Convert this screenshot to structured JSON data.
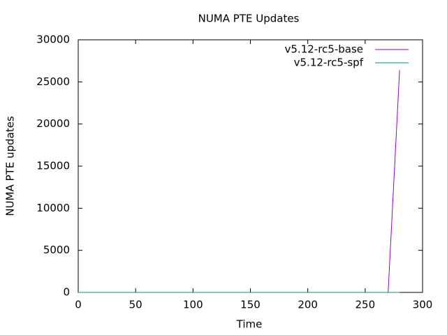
{
  "chart_data": {
    "type": "line",
    "title": "NUMA PTE Updates",
    "x_label": "Time",
    "y_label": "NUMA PTE updates",
    "series": [
      {
        "name": "v5.12-rc5-base",
        "color": "#9400d3",
        "x": [
          0,
          270,
          280
        ],
        "values": [
          0,
          0,
          26400
        ]
      },
      {
        "name": "v5.12-rc5-spf",
        "color": "#009e73",
        "x": [
          0,
          280
        ],
        "values": [
          0,
          0
        ]
      }
    ],
    "xlim": [
      0,
      300
    ],
    "xticks": [
      0,
      50,
      100,
      150,
      200,
      250,
      300
    ],
    "ylim": [
      0,
      30000
    ],
    "yticks": [
      0,
      5000,
      10000,
      15000,
      20000,
      25000,
      30000
    ],
    "grid": false,
    "legend": "top-right"
  }
}
